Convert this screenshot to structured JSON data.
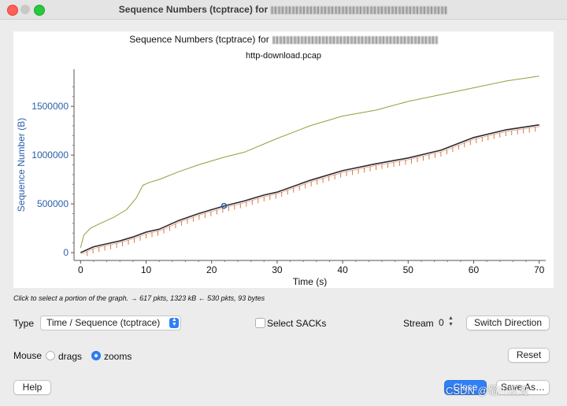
{
  "window": {
    "title": "Sequence Numbers (tcptrace) for"
  },
  "graph": {
    "title": "Sequence Numbers (tcptrace) for",
    "subtitle": "http-download.pcap",
    "xlabel": "Time (s)",
    "ylabel": "Sequence Number (B)",
    "x_ticks": [
      "0",
      "10",
      "20",
      "30",
      "40",
      "50",
      "60",
      "70"
    ],
    "y_ticks": [
      "0",
      "500000",
      "1000000",
      "1500000"
    ]
  },
  "chart_data": {
    "type": "line",
    "title": "Sequence Numbers (tcptrace) for",
    "subtitle": "http-download.pcap",
    "xlabel": "Time (s)",
    "ylabel": "Sequence Number (B)",
    "xlim": [
      -1,
      71
    ],
    "ylim": [
      -80000,
      1880000
    ],
    "x_ticks": [
      0,
      10,
      20,
      30,
      40,
      50,
      60,
      70
    ],
    "y_ticks": [
      0,
      500000,
      1000000,
      1500000
    ],
    "series": [
      {
        "color": "#8aa23c",
        "x": [
          0,
          0.5,
          1.5,
          3,
          5,
          7,
          8.5,
          9.5,
          10.5,
          12,
          15,
          18,
          20,
          22,
          25,
          30,
          35,
          40,
          45,
          50,
          55,
          60,
          65,
          70
        ],
        "y": [
          50000,
          180000,
          250000,
          300000,
          360000,
          440000,
          560000,
          690000,
          720000,
          750000,
          830000,
          900000,
          940000,
          980000,
          1030000,
          1170000,
          1300000,
          1400000,
          1460000,
          1550000,
          1620000,
          1690000,
          1760000,
          1810000
        ]
      },
      {
        "color": "#2b2b2b",
        "x": [
          0,
          1,
          2,
          4,
          6,
          8,
          10,
          12,
          15,
          18,
          20,
          22,
          25,
          28,
          30,
          35,
          40,
          45,
          50,
          55,
          60,
          65,
          70
        ],
        "y": [
          0,
          30000,
          60000,
          90000,
          120000,
          160000,
          210000,
          240000,
          330000,
          400000,
          440000,
          480000,
          530000,
          590000,
          620000,
          740000,
          840000,
          910000,
          970000,
          1050000,
          1180000,
          1260000,
          1310000
        ]
      }
    ],
    "marker": {
      "x": 21.9,
      "y": 480000
    }
  },
  "hint": "Click to select a portion of the graph. → 617 pkts, 1323 kB ← 530 pkts, 93 bytes",
  "controls": {
    "type_label": "Type",
    "type_value": "Time / Sequence (tcptrace)",
    "select_sacks": "Select SACKs",
    "stream_label": "Stream",
    "stream_value": "0",
    "switch_direction": "Switch Direction",
    "mouse_label": "Mouse",
    "drags": "drags",
    "zooms": "zooms",
    "reset": "Reset",
    "help": "Help",
    "close": "Close",
    "save_as": "Save As…"
  },
  "watermark": "CSDN @蜀川凯哥",
  "colors": {
    "accent": "#2f7ff6",
    "axis_label": "#2a5fa8",
    "seq_line": "#2b2b2b",
    "window_line": "#8aa23c",
    "sack_ticks": "#d9783a"
  }
}
